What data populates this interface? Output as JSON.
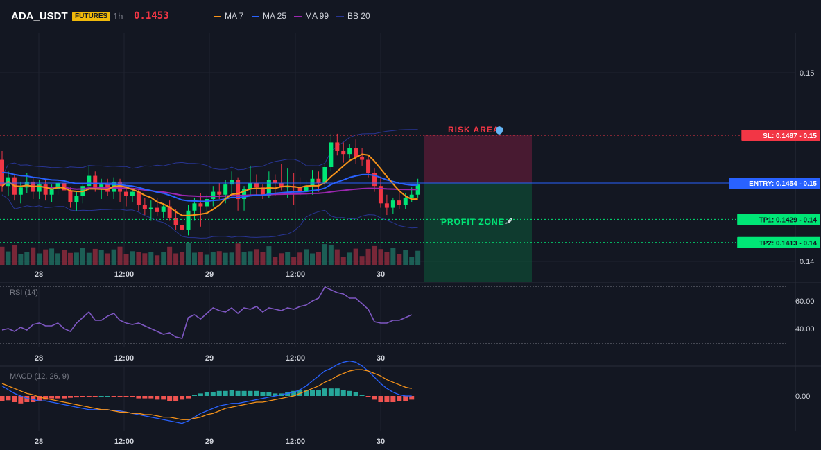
{
  "header": {
    "symbol": "ADA_USDT",
    "badge": "FUTURES",
    "timeframe": "1h",
    "price": "0.1453",
    "price_color": "#f23645",
    "legend": [
      {
        "label": "MA 7",
        "color": "#f7931a"
      },
      {
        "label": "MA 25",
        "color": "#2962ff"
      },
      {
        "label": "MA 99",
        "color": "#9c27b0"
      },
      {
        "label": "BB 20",
        "color": "#283593"
      }
    ]
  },
  "colors": {
    "up": "#26a69a",
    "up_bright": "#00e676",
    "down": "#f23645",
    "background": "#131722",
    "grid": "#1f2330"
  },
  "price_axis": {
    "ticks": [
      "0.15",
      "0.14"
    ],
    "labels": [
      {
        "text": "SL: 0.1487 - 0.15",
        "color": "#f23645",
        "text_color": "#ffffff"
      },
      {
        "text": "ENTRY: 0.1454 - 0.15",
        "color": "#2962ff",
        "text_color": "#ffffff"
      },
      {
        "text": "TP1: 0.1429 - 0.14",
        "color": "#00e676",
        "text_color": "#131722"
      },
      {
        "text": "TP2: 0.1413 - 0.14",
        "color": "#00e676",
        "text_color": "#131722"
      }
    ]
  },
  "time_axis": [
    "28",
    "12:00",
    "29",
    "12:00",
    "30"
  ],
  "zones": {
    "risk": {
      "label": "RISK AREA",
      "icon": "shield",
      "color": "#f23645"
    },
    "profit": {
      "label": "PROFIT ZONE",
      "icon": "rocket",
      "color": "#00e676"
    }
  },
  "rsi": {
    "label": "RSI (14)",
    "ticks": [
      "60.00",
      "40.00"
    ]
  },
  "macd": {
    "label": "MACD (12, 26, 9)",
    "ticks": [
      "0.00"
    ]
  },
  "chart_data": {
    "type": "candlestick",
    "x": [
      "28",
      "12:00",
      "29",
      "12:00",
      "30"
    ],
    "price": {
      "ylim": [
        0.14,
        0.153
      ],
      "sl": 0.1487,
      "entry": 0.1454,
      "tp1": 0.1429,
      "tp2": 0.1413
    },
    "candles": [
      [
        0.147,
        0.1476,
        0.1448,
        0.1452
      ],
      [
        0.1452,
        0.1462,
        0.1445,
        0.1458
      ],
      [
        0.1458,
        0.146,
        0.1442,
        0.1446
      ],
      [
        0.1446,
        0.1455,
        0.144,
        0.1451
      ],
      [
        0.1451,
        0.1461,
        0.1447,
        0.1455
      ],
      [
        0.1455,
        0.1458,
        0.1443,
        0.1448
      ],
      [
        0.1448,
        0.1456,
        0.1443,
        0.1453
      ],
      [
        0.1453,
        0.1457,
        0.1442,
        0.1446
      ],
      [
        0.1446,
        0.1453,
        0.1441,
        0.145
      ],
      [
        0.145,
        0.1456,
        0.1446,
        0.1454
      ],
      [
        0.1454,
        0.1457,
        0.1443,
        0.1449
      ],
      [
        0.1449,
        0.1451,
        0.1437,
        0.1441
      ],
      [
        0.1441,
        0.1448,
        0.1435,
        0.1445
      ],
      [
        0.1445,
        0.1453,
        0.144,
        0.1452
      ],
      [
        0.1452,
        0.1466,
        0.1449,
        0.1459
      ],
      [
        0.1459,
        0.1462,
        0.1448,
        0.145
      ],
      [
        0.145,
        0.1457,
        0.1443,
        0.1453
      ],
      [
        0.1453,
        0.1457,
        0.1445,
        0.1448
      ],
      [
        0.1448,
        0.1458,
        0.1443,
        0.1455
      ],
      [
        0.1455,
        0.1457,
        0.1441,
        0.1448
      ],
      [
        0.1448,
        0.1452,
        0.1438,
        0.1445
      ],
      [
        0.1445,
        0.145,
        0.1441,
        0.1448
      ],
      [
        0.1448,
        0.145,
        0.1435,
        0.1439
      ],
      [
        0.1439,
        0.1444,
        0.1432,
        0.1436
      ],
      [
        0.1436,
        0.1442,
        0.1428,
        0.1437
      ],
      [
        0.1437,
        0.1444,
        0.1431,
        0.1434
      ],
      [
        0.1434,
        0.1439,
        0.143,
        0.1438
      ],
      [
        0.1438,
        0.1442,
        0.1428,
        0.143
      ],
      [
        0.143,
        0.1436,
        0.1422,
        0.1425
      ],
      [
        0.1425,
        0.1432,
        0.142,
        0.1422
      ],
      [
        0.1422,
        0.1439,
        0.1418,
        0.1435
      ],
      [
        0.1435,
        0.1444,
        0.1428,
        0.144
      ],
      [
        0.144,
        0.1447,
        0.1424,
        0.1438
      ],
      [
        0.1438,
        0.1446,
        0.1432,
        0.1443
      ],
      [
        0.1443,
        0.1452,
        0.1438,
        0.1448
      ],
      [
        0.1448,
        0.1454,
        0.1443,
        0.1446
      ],
      [
        0.1446,
        0.1456,
        0.144,
        0.1453
      ],
      [
        0.1453,
        0.1462,
        0.1446,
        0.1456
      ],
      [
        0.1456,
        0.1458,
        0.1435,
        0.1443
      ],
      [
        0.1443,
        0.1452,
        0.1435,
        0.145
      ],
      [
        0.145,
        0.1466,
        0.1445,
        0.1454
      ],
      [
        0.1454,
        0.146,
        0.1446,
        0.1451
      ],
      [
        0.1451,
        0.1453,
        0.1443,
        0.1445
      ],
      [
        0.1445,
        0.1462,
        0.1444,
        0.1456
      ],
      [
        0.1456,
        0.146,
        0.1445,
        0.1454
      ],
      [
        0.1454,
        0.1467,
        0.1449,
        0.1451
      ],
      [
        0.1451,
        0.1464,
        0.1444,
        0.1452
      ],
      [
        0.1452,
        0.1461,
        0.1439,
        0.1451
      ],
      [
        0.1451,
        0.1458,
        0.1445,
        0.1448
      ],
      [
        0.1448,
        0.1456,
        0.1444,
        0.1452
      ],
      [
        0.1452,
        0.1463,
        0.1446,
        0.1457
      ],
      [
        0.1457,
        0.1462,
        0.1448,
        0.1454
      ],
      [
        0.1454,
        0.1467,
        0.145,
        0.1465
      ],
      [
        0.1465,
        0.1488,
        0.1462,
        0.1482
      ],
      [
        0.1482,
        0.1488,
        0.1473,
        0.1476
      ],
      [
        0.1476,
        0.1482,
        0.1468,
        0.1474
      ],
      [
        0.1474,
        0.1481,
        0.1471,
        0.1478
      ],
      [
        0.1478,
        0.1484,
        0.1467,
        0.1472
      ],
      [
        0.1472,
        0.1478,
        0.1466,
        0.147
      ],
      [
        0.147,
        0.1473,
        0.1458,
        0.1461
      ],
      [
        0.1461,
        0.1464,
        0.1448,
        0.1452
      ],
      [
        0.1452,
        0.1458,
        0.1437,
        0.144
      ],
      [
        0.144,
        0.1446,
        0.1432,
        0.1437
      ],
      [
        0.1437,
        0.1444,
        0.1433,
        0.1442
      ],
      [
        0.1442,
        0.1448,
        0.1436,
        0.1439
      ],
      [
        0.1439,
        0.1447,
        0.1436,
        0.1444
      ],
      [
        0.1444,
        0.1451,
        0.1441,
        0.1446
      ],
      [
        0.1446,
        0.1457,
        0.1444,
        0.1453
      ]
    ],
    "rsi": [
      39,
      40,
      38,
      41,
      39,
      43,
      44,
      42,
      42,
      44,
      40,
      38,
      44,
      48,
      52,
      46,
      46,
      49,
      51,
      46,
      44,
      43,
      44,
      42,
      40,
      38,
      36,
      37,
      34,
      33,
      48,
      50,
      47,
      51,
      55,
      53,
      52,
      55,
      51,
      55,
      54,
      56,
      52,
      55,
      54,
      53,
      55,
      54,
      56,
      57,
      60,
      62,
      70,
      68,
      66,
      65,
      62,
      62,
      58,
      54,
      45,
      44,
      44,
      46,
      46,
      48,
      50
    ],
    "macd": {
      "hist": [
        -0.0004,
        -0.00035,
        -0.0005,
        -0.0006,
        -0.0005,
        -0.0005,
        -0.0004,
        -0.0003,
        -0.0002,
        -0.0002,
        -0.0002,
        -0.00015,
        -0.00012,
        -0.0001,
        -0.0001,
        -5e-05,
        0.0,
        0.0,
        -0.0001,
        -0.0001,
        -0.0001,
        -0.0001,
        -0.0002,
        -0.0002,
        -0.0002,
        -0.0003,
        -0.0003,
        -0.0004,
        -0.0004,
        -0.0003,
        -0.0002,
        0.0001,
        0.0002,
        0.0003,
        0.0003,
        0.0004,
        0.0004,
        0.0005,
        0.0004,
        0.0004,
        0.0004,
        0.0004,
        0.0003,
        0.0003,
        0.0002,
        0.0002,
        0.0003,
        0.0004,
        0.0005,
        0.0005,
        0.0005,
        0.0005,
        0.0006,
        0.0006,
        0.0006,
        0.0005,
        0.0004,
        0.0003,
        0.0001,
        -0.0001,
        -0.0003,
        -0.0005,
        -0.0005,
        -0.0005,
        -0.0004,
        -0.0004,
        -0.0003
      ],
      "macd_line": [
        0.0008,
        0.0005,
        0.0002,
        0.0,
        -0.0002,
        -0.0003,
        -0.0004,
        -0.0004,
        -0.0005,
        -0.0006,
        -0.0007,
        -0.0008,
        -0.0009,
        -0.001,
        -0.0011,
        -0.0011,
        -0.0011,
        -0.0011,
        -0.0012,
        -0.0012,
        -0.0013,
        -0.0014,
        -0.0015,
        -0.0016,
        -0.0017,
        -0.0018,
        -0.0019,
        -0.002,
        -0.0021,
        -0.0022,
        -0.002,
        -0.0017,
        -0.0014,
        -0.0012,
        -0.001,
        -0.0008,
        -0.0007,
        -0.0006,
        -0.0006,
        -0.0005,
        -0.0004,
        -0.0003,
        -0.0002,
        -0.0001,
        0.0,
        0.0001,
        0.0002,
        0.0003,
        0.0005,
        0.0008,
        0.0012,
        0.0016,
        0.002,
        0.0022,
        0.0025,
        0.0027,
        0.0028,
        0.0027,
        0.0024,
        0.002,
        0.0015,
        0.001,
        0.0006,
        0.0003,
        0.0001,
        0.0,
        0.0
      ],
      "signal_line": [
        0.001,
        0.0008,
        0.0006,
        0.0004,
        0.0002,
        0.0001,
        -0.0001,
        -0.0002,
        -0.0003,
        -0.0004,
        -0.0005,
        -0.0006,
        -0.0007,
        -0.0008,
        -0.0009,
        -0.001,
        -0.0011,
        -0.0011,
        -0.0012,
        -0.0013,
        -0.0013,
        -0.0014,
        -0.0014,
        -0.0015,
        -0.0015,
        -0.0016,
        -0.0017,
        -0.0017,
        -0.0018,
        -0.0019,
        -0.0019,
        -0.0018,
        -0.0017,
        -0.0015,
        -0.0014,
        -0.0012,
        -0.001,
        -0.0009,
        -0.0008,
        -0.0007,
        -0.0006,
        -0.0005,
        -0.0005,
        -0.0004,
        -0.0003,
        -0.0002,
        -0.0001,
        0.0,
        0.0002,
        0.0004,
        0.0006,
        0.0008,
        0.0011,
        0.0013,
        0.0016,
        0.0018,
        0.002,
        0.0021,
        0.0021,
        0.002,
        0.0018,
        0.0016,
        0.0013,
        0.0011,
        0.0009,
        0.0007,
        0.0006
      ]
    }
  }
}
